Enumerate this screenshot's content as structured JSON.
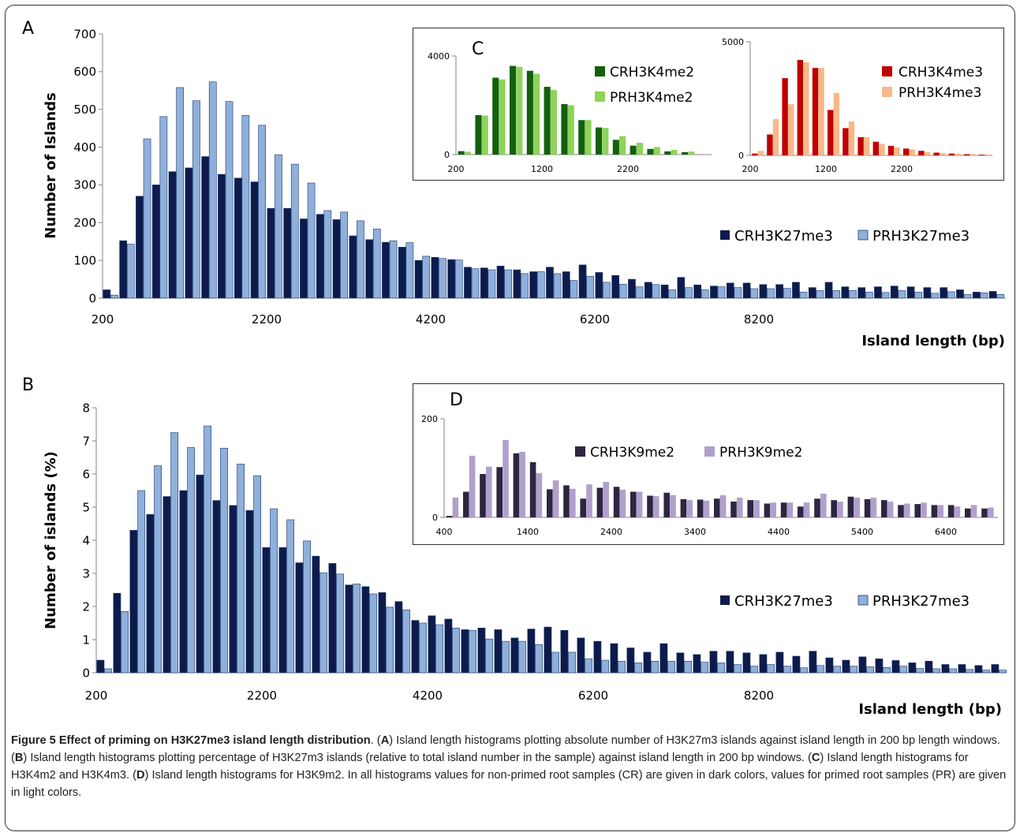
{
  "panels": {
    "A": "A",
    "B": "B",
    "C": "C",
    "D": "D"
  },
  "colors": {
    "cr27": "#0d1b4c",
    "pr27": "#8eb0da",
    "cr_k4me2": "#13600e",
    "pr_k4me2": "#8ed35a",
    "cr_k4me3": "#c00000",
    "pr_k4me3": "#f9b889",
    "cr_k9": "#2e2540",
    "pr_k9": "#b1a0cc",
    "axis": "#868686"
  },
  "chart_data": [
    {
      "id": "A",
      "type": "bar",
      "x_start": 200,
      "bin_width": 200,
      "xticks": [
        "200",
        "2200",
        "4200",
        "6200",
        "8200"
      ],
      "yticks": [
        "0",
        "100",
        "200",
        "300",
        "400",
        "500",
        "600",
        "700"
      ],
      "ylim": [
        0,
        700
      ],
      "ylabel": "Number of Islands",
      "xlabel": "Island length (bp)",
      "series": [
        {
          "name": "CRH3K27me3",
          "values": [
            22,
            152,
            270,
            300,
            335,
            345,
            375,
            328,
            318,
            308,
            238,
            238,
            210,
            222,
            208,
            165,
            155,
            148,
            135,
            100,
            108,
            102,
            82,
            80,
            85,
            75,
            70,
            82,
            70,
            88,
            68,
            60,
            50,
            42,
            35,
            55,
            35,
            32,
            40,
            40,
            36,
            36,
            42,
            28,
            42,
            30,
            28,
            30,
            32,
            30,
            28,
            28,
            22,
            16,
            18
          ]
        },
        {
          "name": "PRH3K27me3",
          "values": [
            8,
            143,
            422,
            481,
            558,
            523,
            573,
            521,
            484,
            458,
            380,
            355,
            305,
            232,
            228,
            205,
            183,
            152,
            147,
            111,
            105,
            101,
            78,
            75,
            75,
            65,
            70,
            65,
            47,
            58,
            42,
            37,
            30,
            36,
            22,
            28,
            22,
            30,
            28,
            25,
            25,
            26,
            16,
            20,
            20,
            20,
            16,
            15,
            20,
            16,
            13,
            17,
            10,
            14,
            10
          ]
        }
      ]
    },
    {
      "id": "B",
      "type": "bar",
      "x_start": 200,
      "bin_width": 200,
      "xticks": [
        "200",
        "2200",
        "4200",
        "6200",
        "8200"
      ],
      "yticks": [
        "0",
        "1",
        "2",
        "3",
        "4",
        "5",
        "6",
        "7",
        "8"
      ],
      "ylim": [
        0,
        8
      ],
      "ylabel": "Number of islands (%)",
      "xlabel": "Island length (bp)",
      "series": [
        {
          "name": "CRH3K27me3",
          "values": [
            0.38,
            2.4,
            4.3,
            4.78,
            5.32,
            5.5,
            5.97,
            5.2,
            5.05,
            4.9,
            3.78,
            3.78,
            3.32,
            3.52,
            3.3,
            2.65,
            2.6,
            2.42,
            2.15,
            1.58,
            1.72,
            1.62,
            1.3,
            1.35,
            1.3,
            1.05,
            1.32,
            1.38,
            1.28,
            1.05,
            0.95,
            0.88,
            0.75,
            0.62,
            0.88,
            0.6,
            0.55,
            0.65,
            0.65,
            0.6,
            0.55,
            0.62,
            0.5,
            0.65,
            0.45,
            0.38,
            0.48,
            0.42,
            0.37,
            0.3,
            0.35,
            0.25,
            0.25,
            0.22,
            0.25
          ]
        },
        {
          "name": "PRH3K27me3",
          "values": [
            0.12,
            1.85,
            5.5,
            6.25,
            7.25,
            6.8,
            7.45,
            6.78,
            6.3,
            5.95,
            4.95,
            4.62,
            3.98,
            3.02,
            2.98,
            2.68,
            2.38,
            1.98,
            1.9,
            1.5,
            1.45,
            1.35,
            1.28,
            1.02,
            0.95,
            0.95,
            0.85,
            0.62,
            0.62,
            0.42,
            0.38,
            0.35,
            0.3,
            0.35,
            0.35,
            0.35,
            0.32,
            0.3,
            0.25,
            0.2,
            0.25,
            0.2,
            0.15,
            0.22,
            0.2,
            0.2,
            0.18,
            0.16,
            0.2,
            0.13,
            0.12,
            0.12,
            0.1,
            0.08,
            0.08
          ]
        }
      ]
    },
    {
      "id": "C1",
      "type": "bar",
      "x_start": 200,
      "bin_width": 200,
      "xticks": [
        "200",
        "1200",
        "2200"
      ],
      "yticks": [
        "0",
        "4000"
      ],
      "ylim": [
        0,
        4000
      ],
      "series": [
        {
          "name": "CRH3K4me2",
          "values": [
            140,
            1600,
            3120,
            3600,
            3400,
            2750,
            2050,
            1400,
            1100,
            600,
            360,
            230,
            130,
            100
          ]
        },
        {
          "name": "PRH3K4me2",
          "values": [
            110,
            1580,
            3050,
            3560,
            3280,
            2620,
            2000,
            1400,
            1080,
            750,
            480,
            310,
            190,
            120
          ]
        }
      ]
    },
    {
      "id": "C2",
      "type": "bar",
      "x_start": 200,
      "bin_width": 200,
      "xticks": [
        "200",
        "1200",
        "2200"
      ],
      "yticks": [
        "0",
        "5000"
      ],
      "ylim": [
        0,
        5000
      ],
      "series": [
        {
          "name": "CRH3K4me3",
          "values": [
            80,
            920,
            3400,
            4200,
            3850,
            2000,
            1200,
            800,
            600,
            420,
            300,
            200,
            120,
            80,
            50,
            30
          ]
        },
        {
          "name": "PRH3K4me3",
          "values": [
            200,
            1600,
            2250,
            4100,
            3850,
            2750,
            1500,
            800,
            500,
            350,
            260,
            150,
            100,
            80,
            60,
            40
          ]
        }
      ]
    },
    {
      "id": "D",
      "type": "bar",
      "x_start": 400,
      "bin_width": 200,
      "xticks": [
        "400",
        "1400",
        "2400",
        "3400",
        "4400",
        "5400",
        "6400"
      ],
      "yticks": [
        "0",
        "200"
      ],
      "ylim": [
        0,
        200
      ],
      "series": [
        {
          "name": "CRH3K9me2",
          "values": [
            3,
            52,
            88,
            102,
            130,
            112,
            57,
            65,
            38,
            60,
            62,
            52,
            44,
            50,
            37,
            36,
            38,
            32,
            35,
            28,
            30,
            22,
            38,
            35,
            42,
            37,
            35,
            25,
            27,
            25,
            25,
            18,
            18
          ]
        },
        {
          "name": "PRH3K9me2",
          "values": [
            40,
            125,
            103,
            157,
            133,
            90,
            75,
            58,
            67,
            72,
            56,
            52,
            43,
            45,
            35,
            34,
            45,
            40,
            35,
            30,
            30,
            30,
            48,
            32,
            40,
            40,
            32,
            28,
            30,
            25,
            22,
            25,
            20
          ]
        }
      ]
    }
  ],
  "caption": {
    "title": "Figure 5 Effect of priming on H3K27me3 island length distribution",
    "t1": ". (",
    "a": "A",
    "t2": ") Island length histograms plotting absolute number of H3K27m3 islands against island length in 200 bp length windows. (",
    "b": "B",
    "t3": ") Island length histograms plotting percentage of H3K27m3 islands (relative to total island number in the sample) against island length in 200 bp windows. (",
    "c": "C",
    "t4": ") Island length histograms for H3K4m2 and H3K4m3. (",
    "d": "D",
    "t5": ") Island length histograms for H3K9m2. In all histograms values for non-primed root samples (CR) are given in dark colors, values for primed root samples (PR) are given in light colors."
  }
}
